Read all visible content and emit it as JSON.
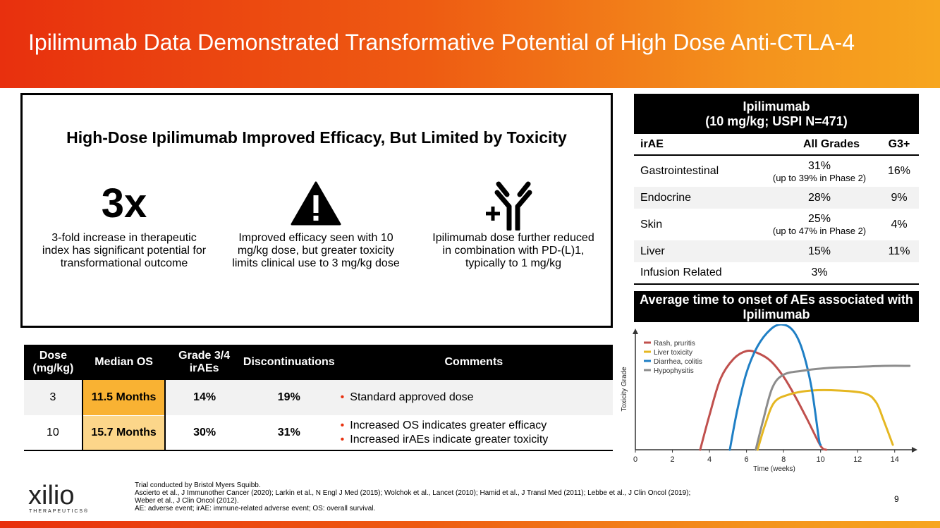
{
  "title": "Ipilimumab Data Demonstrated Transformative Potential of High Dose Anti-CTLA-4",
  "efficacy": {
    "heading": "High-Dose Ipilimumab Improved Efficacy, But Limited by Toxicity",
    "col1_big": "3x",
    "col1_text": "3-fold increase in therapeutic index has significant potential for transformational outcome",
    "col2_text": "Improved efficacy seen with 10 mg/kg dose, but greater toxicity limits clinical use to  3 mg/kg dose",
    "col3_text": "Ipilimumab dose further reduced in combination with PD-(L)1, typically to 1 mg/kg"
  },
  "dose_table": {
    "headers": [
      "Dose (mg/kg)",
      "Median OS",
      "Grade 3/4 irAEs",
      "Discontinuations",
      "Comments"
    ],
    "rows": [
      {
        "dose": "3",
        "os": "11.5 Months",
        "grade": "14%",
        "disc": "19%",
        "comments": [
          "Standard approved dose"
        ]
      },
      {
        "dose": "10",
        "os": "15.7 Months",
        "grade": "30%",
        "disc": "31%",
        "comments": [
          "Increased OS indicates greater efficacy",
          "Increased irAEs indicate greater toxicity"
        ]
      }
    ]
  },
  "irae_table": {
    "title_line1": "Ipilimumab",
    "title_line2": "(10 mg/kg; USPI N=471)",
    "headers": [
      "irAE",
      "All Grades",
      "G3+"
    ],
    "rows": [
      {
        "name": "Gastrointestinal",
        "all": "31%",
        "note": "(up to 39% in Phase 2)",
        "g3": "16%"
      },
      {
        "name": "Endocrine",
        "all": "28%",
        "note": "",
        "g3": "9%"
      },
      {
        "name": "Skin",
        "all": "25%",
        "note": "(up to 47% in Phase 2)",
        "g3": "4%"
      },
      {
        "name": "Liver",
        "all": "15%",
        "note": "",
        "g3": "11%"
      },
      {
        "name": "Infusion Related",
        "all": "3%",
        "note": "",
        "g3": ""
      }
    ]
  },
  "chart_title": "Average time to onset of AEs associated with Ipilimumab",
  "chart_data": {
    "type": "line",
    "title": "Average time to onset of AEs associated with Ipilimumab",
    "xlabel": "Time (weeks)",
    "ylabel": "Toxicity Grade",
    "xlim": [
      0,
      15
    ],
    "ylim": [
      0,
      1.2
    ],
    "xticks": [
      0,
      2,
      4,
      6,
      8,
      10,
      12,
      14
    ],
    "legend_position": "top-left",
    "series": [
      {
        "name": "Rash, pruritis",
        "color": "#c0504d",
        "points": [
          [
            3.5,
            0
          ],
          [
            4,
            0.35
          ],
          [
            4.6,
            0.72
          ],
          [
            5.3,
            0.92
          ],
          [
            6,
            1.0
          ],
          [
            6.6,
            0.98
          ],
          [
            7.3,
            0.9
          ],
          [
            8,
            0.74
          ],
          [
            8.6,
            0.55
          ],
          [
            9.3,
            0.3
          ],
          [
            10,
            0.04
          ],
          [
            10.3,
            0
          ]
        ]
      },
      {
        "name": "Liver toxicity",
        "color": "#e5b722",
        "points": [
          [
            6.6,
            0
          ],
          [
            7,
            0.25
          ],
          [
            7.5,
            0.48
          ],
          [
            8.3,
            0.56
          ],
          [
            9.5,
            0.6
          ],
          [
            11,
            0.6
          ],
          [
            12.4,
            0.57
          ],
          [
            13,
            0.48
          ],
          [
            13.4,
            0.3
          ],
          [
            13.9,
            0.05
          ]
        ]
      },
      {
        "name": "Diarrhea, colitis",
        "color": "#1f7fc5",
        "points": [
          [
            5.1,
            0
          ],
          [
            5.5,
            0.4
          ],
          [
            6,
            0.78
          ],
          [
            6.6,
            1.05
          ],
          [
            7.3,
            1.22
          ],
          [
            7.9,
            1.27
          ],
          [
            8.5,
            1.21
          ],
          [
            9,
            1.02
          ],
          [
            9.5,
            0.64
          ],
          [
            9.9,
            0.12
          ],
          [
            10,
            0.05
          ]
        ]
      },
      {
        "name": "Hypophysitis",
        "color": "#8c8c8c",
        "points": [
          [
            6.5,
            0
          ],
          [
            6.9,
            0.3
          ],
          [
            7.4,
            0.63
          ],
          [
            8,
            0.76
          ],
          [
            9,
            0.8
          ],
          [
            10.5,
            0.83
          ],
          [
            12,
            0.84
          ],
          [
            13.5,
            0.85
          ],
          [
            14.8,
            0.85
          ]
        ]
      }
    ]
  },
  "footnotes": [
    "Trial conducted by Bristol Myers Squibb.",
    "Ascierto et al., J Immunother Cancer (2020); Larkin et al., N Engl J Med (2015); Wolchok et al., Lancet (2010); Hamid et al., J Transl Med (2011); Lebbe et al., J Clin Oncol (2019);",
    "Weber et al., J Clin Oncol (2012).",
    "AE: adverse event; irAE: immune-related adverse event; OS: overall survival."
  ],
  "logo": {
    "word": "xilio",
    "sub": "THERAPEUTICS®"
  },
  "page_number": "9",
  "colors": {
    "accent": "#ee5b12",
    "os_dark": "#f9b233",
    "os_light": "#fcd68a"
  }
}
